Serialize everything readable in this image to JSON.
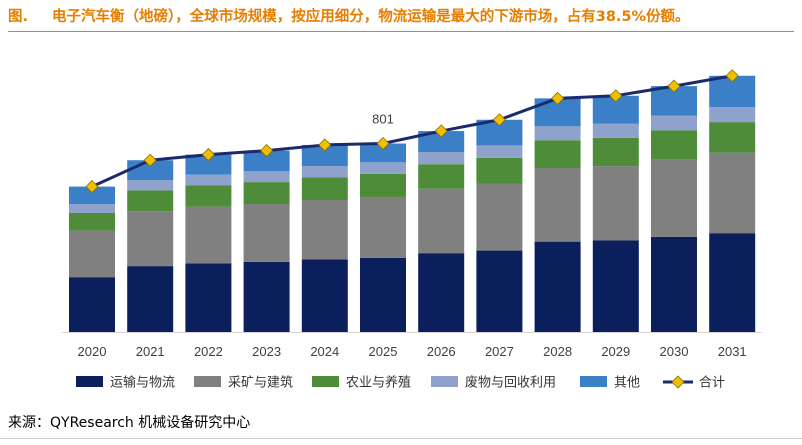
{
  "header": {
    "fig_label": "图.",
    "title": "电子汽车衡（地磅），全球市场规模，按应用细分，物流运输是最大的下游市场，占有38.5%份额。"
  },
  "source": "来源：QYResearch 机械设备研究中心",
  "chart_data": {
    "type": "bar",
    "stacked": true,
    "title": "",
    "xlabel": "",
    "ylabel": "",
    "ylim": [
      0,
      1200
    ],
    "grid": false,
    "categories": [
      "2020",
      "2021",
      "2022",
      "2023",
      "2024",
      "2025",
      "2026",
      "2027",
      "2028",
      "2029",
      "2030",
      "2031"
    ],
    "series": [
      {
        "name": "运输与物流",
        "color": "#0a1f5c",
        "values": [
          233,
          280,
          292,
          298,
          308,
          315,
          335,
          346,
          384,
          389,
          404,
          420
        ]
      },
      {
        "name": "采矿与建筑",
        "color": "#808080",
        "values": [
          198,
          233,
          241,
          246,
          253,
          259,
          274,
          285,
          313,
          316,
          328,
          342
        ]
      },
      {
        "name": "农业与养殖",
        "color": "#4e8c3a",
        "values": [
          75,
          89,
          91,
          93,
          96,
          98,
          104,
          109,
          118,
          120,
          125,
          130
        ]
      },
      {
        "name": "废物与回收利用",
        "color": "#8fa2cb",
        "values": [
          37,
          44,
          45,
          46,
          48,
          49,
          52,
          53,
          59,
          60,
          62,
          64
        ]
      },
      {
        "name": "其他",
        "color": "#3b80c6",
        "values": [
          75,
          84,
          85,
          88,
          90,
          80,
          89,
          109,
          119,
          119,
          126,
          133
        ]
      }
    ],
    "line": {
      "name": "合计",
      "color": "#1a2a6c",
      "marker_color": "#f0c000",
      "values": [
        618,
        730,
        754,
        771,
        795,
        801,
        854,
        902,
        993,
        1004,
        1045,
        1089
      ]
    },
    "annotations": [
      {
        "category": "2025",
        "text": "801"
      }
    ],
    "legend_position": "bottom"
  }
}
